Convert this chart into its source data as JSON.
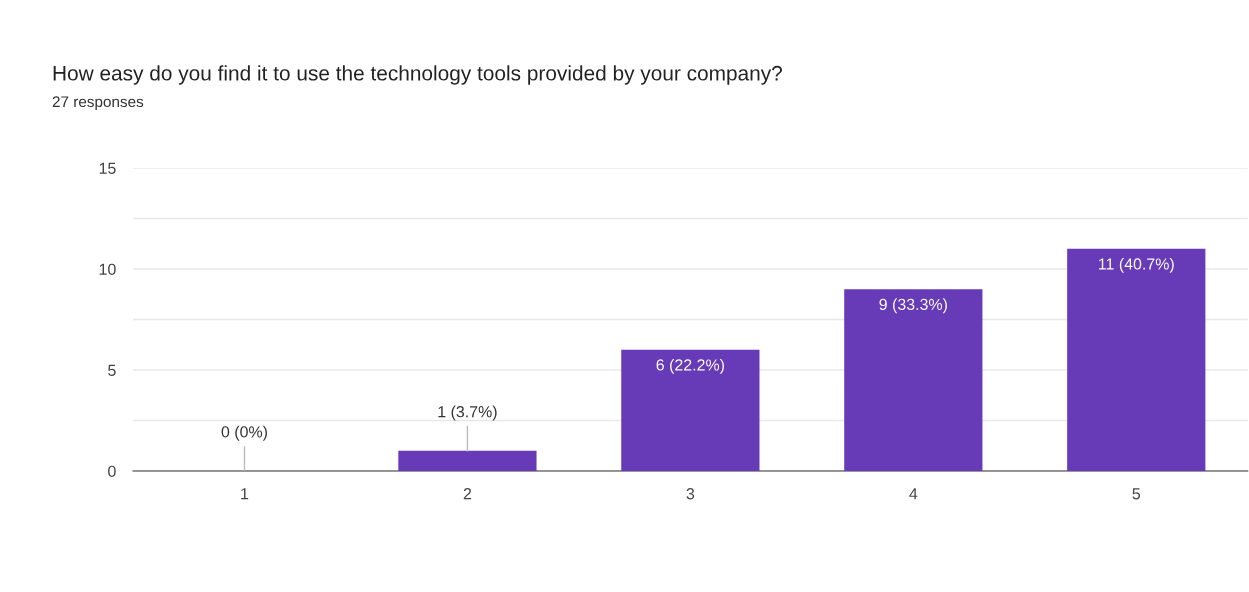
{
  "chart_data": {
    "type": "bar",
    "title": "How easy do you find it to use the technology tools provided by your company?",
    "subtitle": "27 responses",
    "categories": [
      "1",
      "2",
      "3",
      "4",
      "5"
    ],
    "values": [
      0,
      1,
      6,
      9,
      11
    ],
    "value_labels": [
      "0 (0%)",
      "1 (3.7%)",
      "6 (22.2%)",
      "9 (33.3%)",
      "11 (40.7%)"
    ],
    "color": "#673ab7",
    "ylim": [
      0,
      15
    ],
    "yticks": [
      0,
      {
        "value": 2.5,
        "label": null
      },
      5,
      {
        "value": 7.5,
        "label": null
      },
      10,
      {
        "value": 12.5,
        "label": null
      },
      15
    ],
    "grid": "y"
  }
}
